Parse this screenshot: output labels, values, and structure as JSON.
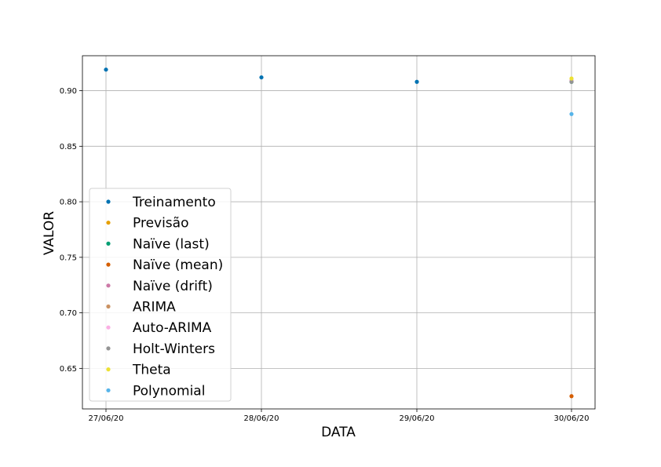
{
  "chart_data": {
    "type": "scatter",
    "xlabel": "DATA",
    "ylabel": "VALOR",
    "x_categories": [
      "27/06/20",
      "28/06/20",
      "29/06/20",
      "30/06/20"
    ],
    "yticks": [
      "0.65",
      "0.70",
      "0.75",
      "0.80",
      "0.85",
      "0.90"
    ],
    "ylim": [
      0.6135,
      0.9315
    ],
    "grid": true,
    "legend_position": "lower-left",
    "series": [
      {
        "name": "Treinamento",
        "color": "#0072b2",
        "points": [
          {
            "x": "27/06/20",
            "y": 0.919
          },
          {
            "x": "28/06/20",
            "y": 0.912
          },
          {
            "x": "29/06/20",
            "y": 0.908
          },
          {
            "x": "30/06/20",
            "y": 0.909
          }
        ]
      },
      {
        "name": "Previsão",
        "color": "#e69f00",
        "points": [
          {
            "x": "30/06/20",
            "y": 0.909
          }
        ]
      },
      {
        "name": "Naïve (last)",
        "color": "#009e73",
        "points": [
          {
            "x": "30/06/20",
            "y": 0.908
          }
        ]
      },
      {
        "name": "Naïve (mean)",
        "color": "#d55e00",
        "points": [
          {
            "x": "30/06/20",
            "y": 0.625
          }
        ]
      },
      {
        "name": "Naïve (drift)",
        "color": "#cc79a7",
        "points": [
          {
            "x": "30/06/20",
            "y": 0.909
          }
        ]
      },
      {
        "name": "ARIMA",
        "color": "#ca9161",
        "points": [
          {
            "x": "30/06/20",
            "y": 0.909
          }
        ]
      },
      {
        "name": "Auto-ARIMA",
        "color": "#fbafe4",
        "points": [
          {
            "x": "30/06/20",
            "y": 0.909
          }
        ]
      },
      {
        "name": "Holt-Winters",
        "color": "#949494",
        "points": [
          {
            "x": "30/06/20",
            "y": 0.908
          }
        ]
      },
      {
        "name": "Theta",
        "color": "#ece133",
        "points": [
          {
            "x": "30/06/20",
            "y": 0.911
          }
        ]
      },
      {
        "name": "Polynomial",
        "color": "#56b4e9",
        "points": [
          {
            "x": "30/06/20",
            "y": 0.879
          }
        ]
      }
    ]
  }
}
